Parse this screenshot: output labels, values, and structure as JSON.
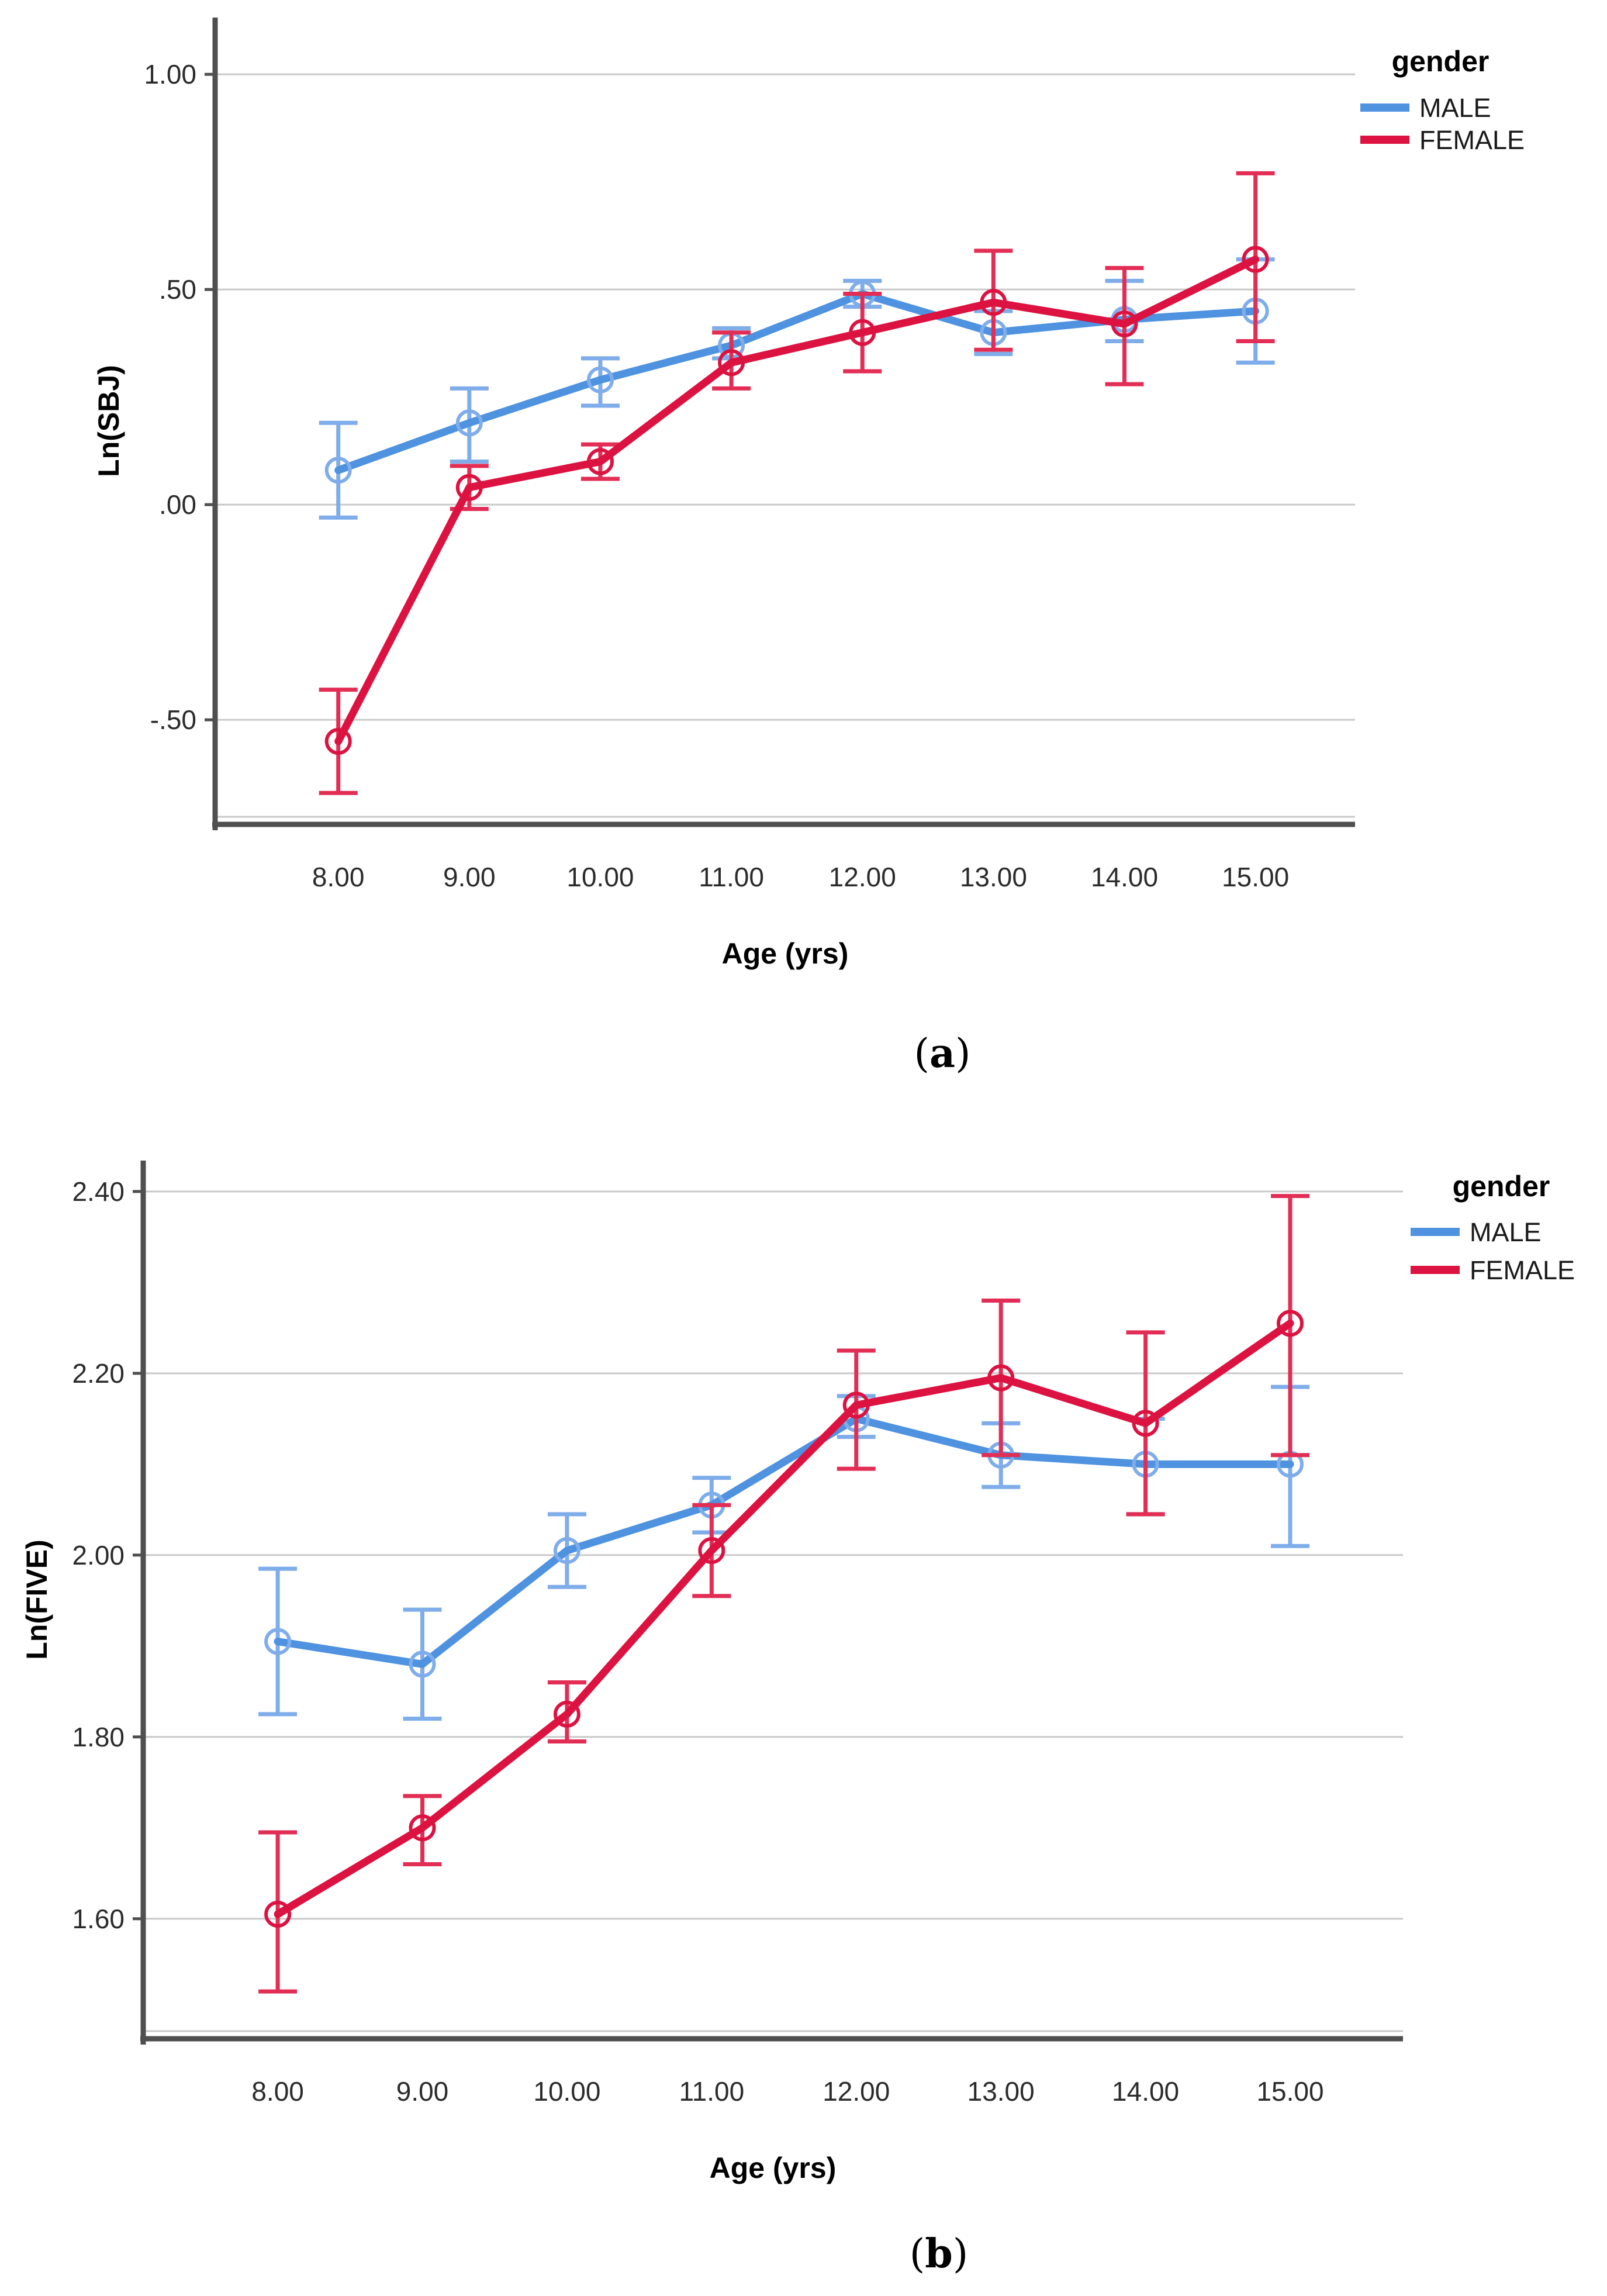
{
  "figure_type": "two-panel line chart with error bars",
  "style": {
    "background": "#ffffff",
    "gridline_color": "#c9c9c9",
    "axis_color": "#4f4f4f",
    "tick_text_color": "#2b2b2b",
    "male_color": "#4e92e0",
    "male_error_color": "#7fadea",
    "female_color": "#dc1240",
    "female_error_color": "#e22e55"
  },
  "chart_data": [
    {
      "panel": "a",
      "type": "line",
      "title": "",
      "ylabel": "Ln(SBJ)",
      "xlabel": "Age (yrs)",
      "legend_title": "gender",
      "legend_position": "top-right-outside",
      "grid": true,
      "x": [
        8,
        9,
        10,
        11,
        12,
        13,
        14,
        15
      ],
      "xtick_labels": [
        "8.00",
        "9.00",
        "10.00",
        "11.00",
        "12.00",
        "13.00",
        "14.00",
        "15.00"
      ],
      "yticks": [
        {
          "v": 1.0,
          "label": "1.00"
        },
        {
          "v": 0.5,
          "label": ".50"
        },
        {
          "v": 0.0,
          "label": ".00"
        },
        {
          "v": -0.5,
          "label": "-.50"
        }
      ],
      "xlim": [
        7.06,
        15.76
      ],
      "ylim": [
        -0.743,
        1.132
      ],
      "series": [
        {
          "name": "MALE",
          "color": "#4e92e0",
          "marker_color": "#7fadea",
          "error_color": "#7fadea",
          "values": [
            0.08,
            0.19,
            0.29,
            0.37,
            0.49,
            0.4,
            0.43,
            0.45
          ],
          "ci_low": [
            -0.03,
            0.1,
            0.23,
            0.34,
            0.46,
            0.35,
            0.38,
            0.33
          ],
          "ci_high": [
            0.19,
            0.27,
            0.34,
            0.41,
            0.52,
            0.45,
            0.52,
            0.57
          ]
        },
        {
          "name": "FEMALE",
          "color": "#dc1240",
          "marker_color": "#dc1240",
          "error_color": "#e22e55",
          "values": [
            -0.55,
            0.04,
            0.1,
            0.33,
            0.4,
            0.47,
            0.42,
            0.57
          ],
          "ci_low": [
            -0.67,
            -0.01,
            0.06,
            0.27,
            0.31,
            0.36,
            0.28,
            0.38
          ],
          "ci_high": [
            -0.43,
            0.09,
            0.14,
            0.4,
            0.49,
            0.59,
            0.55,
            0.77
          ]
        }
      ],
      "caption": {
        "open": "(",
        "letter": "a",
        "close": ")"
      }
    },
    {
      "panel": "b",
      "type": "line",
      "title": "",
      "ylabel": "Ln(FIVE)",
      "xlabel": "Age (yrs)",
      "legend_title": "gender",
      "legend_position": "top-right-outside",
      "grid": true,
      "x": [
        8,
        9,
        10,
        11,
        12,
        13,
        14,
        15
      ],
      "xtick_labels": [
        "8.00",
        "9.00",
        "10.00",
        "11.00",
        "12.00",
        "13.00",
        "14.00",
        "15.00"
      ],
      "yticks": [
        {
          "v": 2.4,
          "label": "2.40"
        },
        {
          "v": 2.2,
          "label": "2.20"
        },
        {
          "v": 2.0,
          "label": "2.00"
        },
        {
          "v": 1.8,
          "label": "1.80"
        },
        {
          "v": 1.6,
          "label": "1.60"
        }
      ],
      "xlim": [
        7.07,
        15.78
      ],
      "ylim": [
        1.468,
        2.434
      ],
      "series": [
        {
          "name": "MALE",
          "color": "#4e92e0",
          "marker_color": "#7fadea",
          "error_color": "#7fadea",
          "values": [
            1.905,
            1.88,
            2.005,
            2.055,
            2.15,
            2.11,
            2.1,
            2.1
          ],
          "ci_low": [
            1.825,
            1.82,
            1.965,
            2.025,
            2.13,
            2.075,
            2.045,
            2.01
          ],
          "ci_high": [
            1.985,
            1.94,
            2.045,
            2.085,
            2.175,
            2.145,
            2.15,
            2.185
          ]
        },
        {
          "name": "FEMALE",
          "color": "#dc1240",
          "marker_color": "#dc1240",
          "error_color": "#e22e55",
          "values": [
            1.605,
            1.7,
            1.825,
            2.005,
            2.165,
            2.195,
            2.145,
            2.255
          ],
          "ci_low": [
            1.52,
            1.66,
            1.795,
            1.955,
            2.095,
            2.11,
            2.045,
            2.11
          ],
          "ci_high": [
            1.695,
            1.735,
            1.86,
            2.055,
            2.225,
            2.28,
            2.245,
            2.395
          ]
        }
      ],
      "caption": {
        "open": "(",
        "letter": "b",
        "close": ")"
      }
    }
  ]
}
